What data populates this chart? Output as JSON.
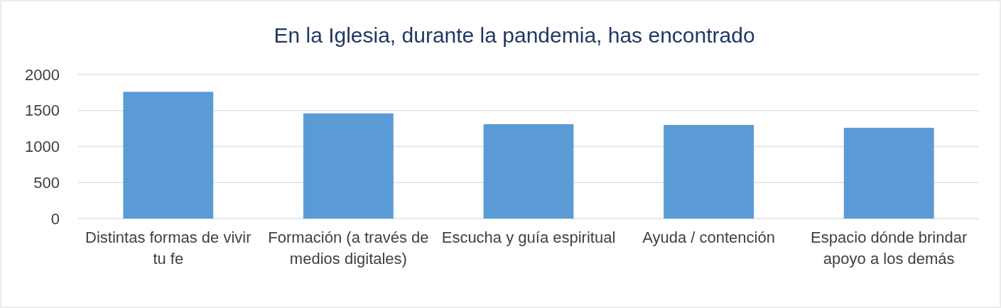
{
  "chart_data": {
    "type": "bar",
    "title": "En la Iglesia, durante la pandemia, has encontrado",
    "categories": [
      "Distintas formas de vivir tu fe",
      "Formación (a través de medios digitales)",
      "Escucha y guía espiritual",
      "Ayuda / contención",
      "Espacio dónde brindar apoyo a los demás"
    ],
    "values": [
      1760,
      1460,
      1310,
      1300,
      1260
    ],
    "color": "#5b9bd5",
    "ylim": [
      0,
      2000
    ],
    "yticks": [
      0,
      500,
      1000,
      1500,
      2000
    ],
    "grid": "y"
  }
}
